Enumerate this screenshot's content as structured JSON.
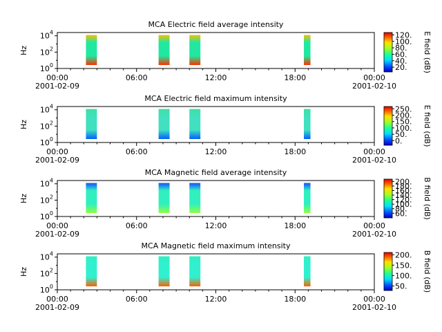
{
  "chart_data": [
    {
      "type": "heatmap",
      "title": "MCA  Electric field average intensity",
      "ylabel": "Hz",
      "y_scale": "log",
      "y_ticks": [
        {
          "base": "10",
          "exp": "0"
        },
        {
          "base": "10",
          "exp": "2"
        },
        {
          "base": "10",
          "exp": "4"
        }
      ],
      "x_ticks": [
        "00:00",
        "06:00",
        "12:00",
        "18:00",
        "00:00"
      ],
      "x_dates": [
        "2001-02-09",
        "2001-02-10"
      ],
      "xlim": [
        "2001-02-09 00:00",
        "2001-02-10 00:00"
      ],
      "colorbar": {
        "label": "E field (dB)",
        "ticks": [
          "20.",
          "40.",
          "60.",
          "80.",
          "100.",
          "120."
        ]
      },
      "data_intervals": [
        [
          "02:10",
          "03:00"
        ],
        [
          "07:40",
          "08:30"
        ],
        [
          "10:00",
          "10:50"
        ],
        [
          "18:40",
          "19:10"
        ]
      ],
      "colormap": "jet-like: blue (low) to red (high)",
      "colors": {
        "mid": "#20e8a0",
        "high": "#f8c000",
        "low_band": "#ff3000"
      }
    },
    {
      "type": "heatmap",
      "title": "MCA  Electric field maximum intensity",
      "ylabel": "Hz",
      "y_scale": "log",
      "y_ticks": [
        {
          "base": "10",
          "exp": "0"
        },
        {
          "base": "10",
          "exp": "2"
        },
        {
          "base": "10",
          "exp": "4"
        }
      ],
      "x_ticks": [
        "00:00",
        "06:00",
        "12:00",
        "18:00",
        "00:00"
      ],
      "x_dates": [
        "2001-02-09",
        "2001-02-10"
      ],
      "xlim": [
        "2001-02-09 00:00",
        "2001-02-10 00:00"
      ],
      "colorbar": {
        "label": "E field (dB)",
        "ticks": [
          "0.",
          "50.",
          "100.",
          "150.",
          "200.",
          "250."
        ]
      },
      "data_intervals": [
        [
          "02:10",
          "03:00"
        ],
        [
          "07:40",
          "08:30"
        ],
        [
          "10:00",
          "10:50"
        ],
        [
          "18:40",
          "19:10"
        ]
      ],
      "colormap": "jet-like: blue (low) to red (high)",
      "colors": {
        "mid": "#40e0c0",
        "high": "#40e0a0",
        "low_band": "#0060ff"
      }
    },
    {
      "type": "heatmap",
      "title": "MCA  Magnetic field average intensity",
      "ylabel": "Hz",
      "y_scale": "log",
      "y_ticks": [
        {
          "base": "10",
          "exp": "0"
        },
        {
          "base": "10",
          "exp": "2"
        },
        {
          "base": "10",
          "exp": "4"
        }
      ],
      "x_ticks": [
        "00:00",
        "06:00",
        "12:00",
        "18:00",
        "00:00"
      ],
      "x_dates": [
        "2001-02-09",
        "2001-02-10"
      ],
      "xlim": [
        "2001-02-09 00:00",
        "2001-02-10 00:00"
      ],
      "colorbar": {
        "label": "B field (dB)",
        "ticks": [
          "60.",
          "80.",
          "100.",
          "120.",
          "140.",
          "160.",
          "180.",
          "200."
        ]
      },
      "data_intervals": [
        [
          "02:10",
          "03:00"
        ],
        [
          "07:40",
          "08:30"
        ],
        [
          "10:00",
          "10:50"
        ],
        [
          "18:40",
          "19:10"
        ]
      ],
      "colormap": "jet-like: blue (low) to red (high)",
      "colors": {
        "mid": "#30f0c0",
        "high": "#1850ff",
        "low_band": "#90ff40"
      }
    },
    {
      "type": "heatmap",
      "title": "MCA  Magnetic field maximum intensity",
      "ylabel": "Hz",
      "y_scale": "log",
      "y_ticks": [
        {
          "base": "10",
          "exp": "0"
        },
        {
          "base": "10",
          "exp": "2"
        },
        {
          "base": "10",
          "exp": "4"
        }
      ],
      "x_ticks": [
        "00:00",
        "06:00",
        "12:00",
        "18:00",
        "00:00"
      ],
      "x_dates": [
        "2001-02-09",
        "2001-02-10"
      ],
      "xlim": [
        "2001-02-09 00:00",
        "2001-02-10 00:00"
      ],
      "colorbar": {
        "label": "B field (dB)",
        "ticks": [
          "50.",
          "100.",
          "150.",
          "200."
        ]
      },
      "data_intervals": [
        [
          "02:10",
          "03:00"
        ],
        [
          "07:40",
          "08:30"
        ],
        [
          "10:00",
          "10:50"
        ],
        [
          "18:40",
          "19:10"
        ]
      ],
      "colormap": "jet-like: blue (low) to red (high)",
      "colors": {
        "mid": "#30f0d0",
        "high": "#30f0c0",
        "low_band": "#ff6000"
      }
    }
  ]
}
